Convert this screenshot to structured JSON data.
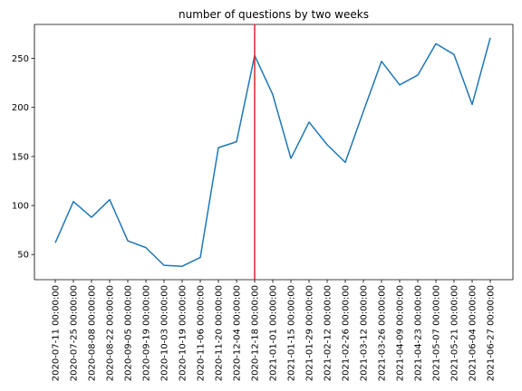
{
  "chart_data": {
    "type": "line",
    "title": "number of questions by two weeks",
    "xlabel": "",
    "ylabel": "",
    "x": [
      "2020-07-11 00:00:00",
      "2020-07-25 00:00:00",
      "2020-08-08 00:00:00",
      "2020-08-22 00:00:00",
      "2020-09-05 00:00:00",
      "2020-09-19 00:00:00",
      "2020-10-03 00:00:00",
      "2020-10-19 00:00:00",
      "2020-11-06 00:00:00",
      "2020-11-20 00:00:00",
      "2020-12-04 00:00:00",
      "2020-12-18 00:00:00",
      "2021-01-01 00:00:00",
      "2021-01-15 00:00:00",
      "2021-01-29 00:00:00",
      "2021-02-12 00:00:00",
      "2021-02-26 00:00:00",
      "2021-03-12 00:00:00",
      "2021-03-26 00:00:00",
      "2021-04-09 00:00:00",
      "2021-04-23 00:00:00",
      "2021-05-07 00:00:00",
      "2021-05-21 00:00:00",
      "2021-06-04 00:00:00",
      "2021-06-27 00:00:00"
    ],
    "series": [
      {
        "values": [
          62,
          104,
          88,
          106,
          64,
          57,
          39,
          38,
          47,
          159,
          165,
          253,
          213,
          148,
          185,
          162,
          144,
          196,
          247,
          223,
          233,
          265,
          254,
          203,
          271
        ],
        "color": "#1f77b4"
      }
    ],
    "vline": {
      "x": "2020-12-18 00:00:00",
      "color": "#d62728"
    },
    "yticks": [
      50,
      100,
      150,
      200,
      250
    ],
    "ylim": [
      24.35,
      284.65
    ],
    "grid": false,
    "legend": "none"
  }
}
